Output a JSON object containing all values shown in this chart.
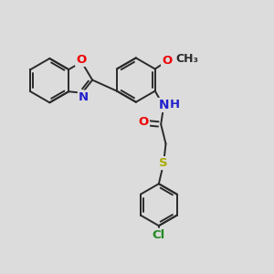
{
  "bg_color": "#dcdcdc",
  "bond_color": "#2a2a2a",
  "bond_width": 1.4,
  "atom_colors": {
    "O": "#ee0000",
    "N": "#2222cc",
    "S": "#aaaa00",
    "Cl": "#228B22",
    "C": "#2a2a2a"
  },
  "font_size": 9.5
}
